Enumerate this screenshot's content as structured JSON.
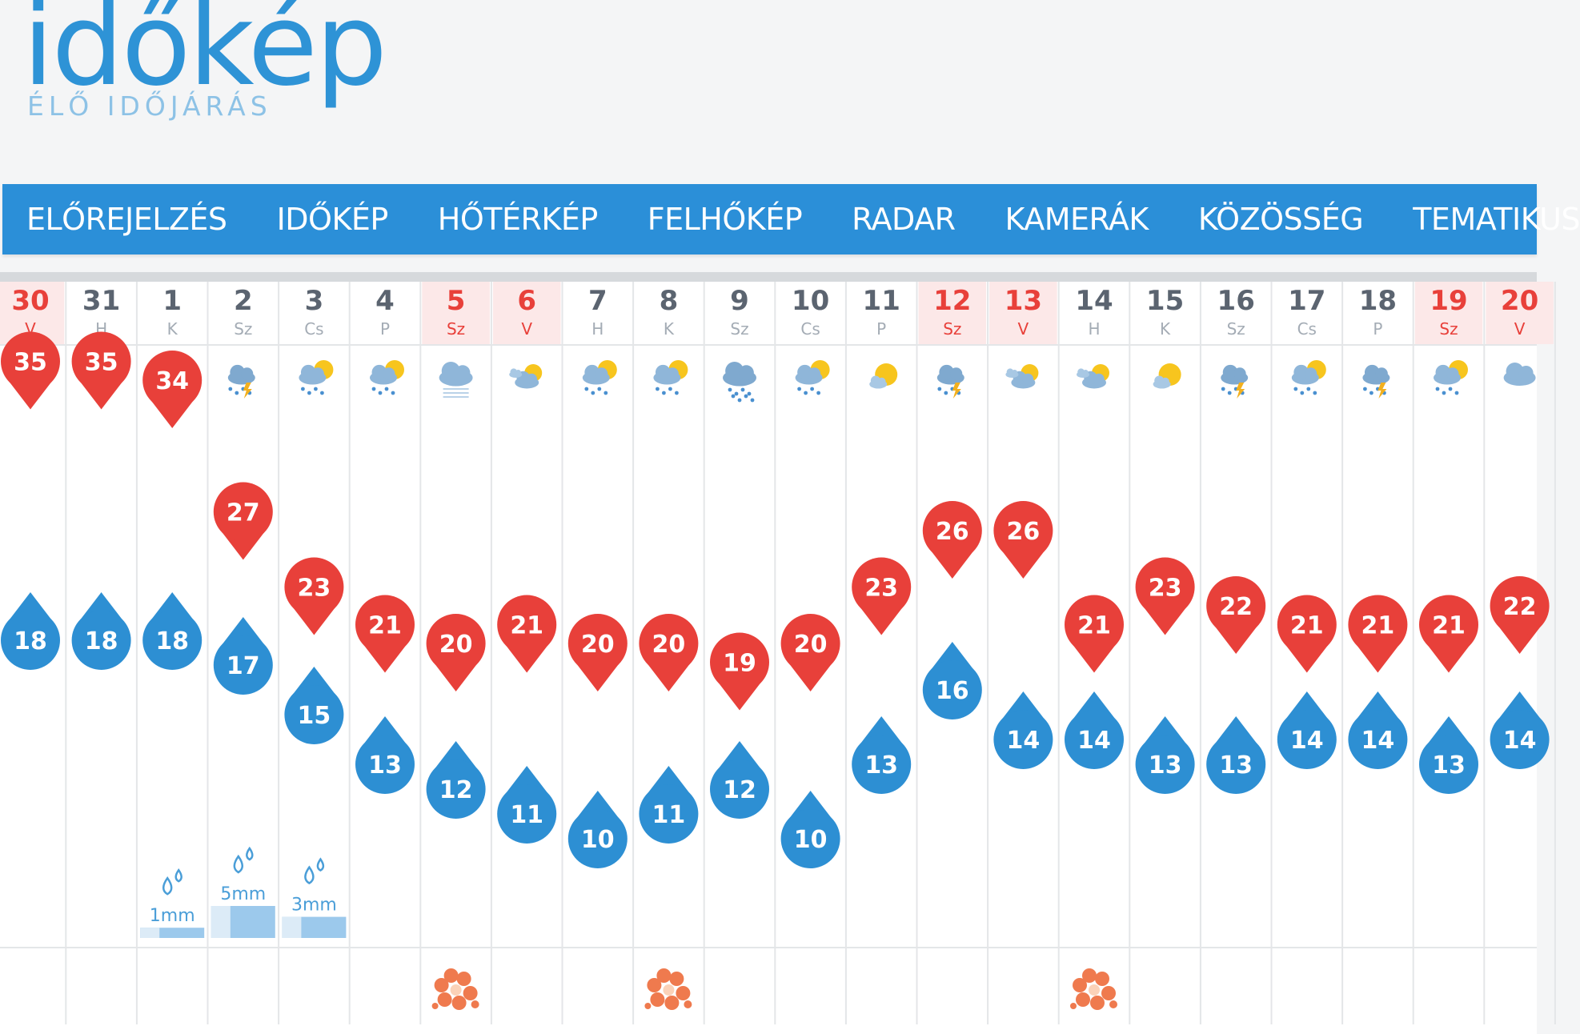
{
  "logo": {
    "wordmark": "időkép",
    "tagline": "ÉLŐ IDŐJÁRÁS"
  },
  "nav": [
    "ELŐREJELZÉS",
    "IDŐKÉP",
    "HŐTÉRKÉP",
    "FELHŐKÉP",
    "RADAR",
    "KAMERÁK",
    "KÖZÖSSÉG",
    "TEMATIKUS"
  ],
  "colors": {
    "brand": "#2b8fd8",
    "max_temp": "#e8403a",
    "min_temp": "#2d8fd3",
    "weekend_bg": "#fce8e8"
  },
  "days": [
    {
      "num": "30",
      "abbr": "V",
      "weekend": true,
      "icon": "sun-cloud-icon",
      "max": "35",
      "min": "18"
    },
    {
      "num": "31",
      "abbr": "H",
      "weekend": false,
      "icon": "sun-icon",
      "max": "35",
      "min": "18"
    },
    {
      "num": "1",
      "abbr": "K",
      "weekend": false,
      "icon": "sun-cloud-icon",
      "max": "34",
      "min": "18",
      "precip": "1mm",
      "precip_level": 0.2
    },
    {
      "num": "2",
      "abbr": "Sz",
      "weekend": false,
      "icon": "storm-icon",
      "max": "27",
      "min": "17",
      "precip": "5mm",
      "precip_level": 1.0
    },
    {
      "num": "3",
      "abbr": "Cs",
      "weekend": false,
      "icon": "rain-sun-icon",
      "max": "23",
      "min": "15",
      "precip": "3mm",
      "precip_level": 0.6
    },
    {
      "num": "4",
      "abbr": "P",
      "weekend": false,
      "icon": "rain-sun-icon",
      "max": "21",
      "min": "13"
    },
    {
      "num": "5",
      "abbr": "Sz",
      "weekend": true,
      "icon": "cloud-fog-icon",
      "max": "20",
      "min": "12",
      "pollen": true
    },
    {
      "num": "6",
      "abbr": "V",
      "weekend": true,
      "icon": "partly-cloudy-icon",
      "max": "21",
      "min": "11"
    },
    {
      "num": "7",
      "abbr": "H",
      "weekend": false,
      "icon": "rain-sun-icon",
      "max": "20",
      "min": "10"
    },
    {
      "num": "8",
      "abbr": "K",
      "weekend": false,
      "icon": "rain-sun-icon",
      "max": "20",
      "min": "11",
      "pollen": true
    },
    {
      "num": "9",
      "abbr": "Sz",
      "weekend": false,
      "icon": "rain-cloud-icon",
      "max": "19",
      "min": "12"
    },
    {
      "num": "10",
      "abbr": "Cs",
      "weekend": false,
      "icon": "rain-sun-icon",
      "max": "20",
      "min": "10"
    },
    {
      "num": "11",
      "abbr": "P",
      "weekend": false,
      "icon": "sun-cloud-icon",
      "max": "23",
      "min": "13"
    },
    {
      "num": "12",
      "abbr": "Sz",
      "weekend": true,
      "icon": "storm-icon",
      "max": "26",
      "min": "16"
    },
    {
      "num": "13",
      "abbr": "V",
      "weekend": true,
      "icon": "partly-cloudy-icon",
      "max": "26",
      "min": "14"
    },
    {
      "num": "14",
      "abbr": "H",
      "weekend": false,
      "icon": "partly-cloudy-icon",
      "max": "21",
      "min": "14",
      "pollen": true
    },
    {
      "num": "15",
      "abbr": "K",
      "weekend": false,
      "icon": "sun-cloud-icon",
      "max": "23",
      "min": "13"
    },
    {
      "num": "16",
      "abbr": "Sz",
      "weekend": false,
      "icon": "storm-icon",
      "max": "22",
      "min": "13"
    },
    {
      "num": "17",
      "abbr": "Cs",
      "weekend": false,
      "icon": "rain-sun-icon",
      "max": "21",
      "min": "14"
    },
    {
      "num": "18",
      "abbr": "P",
      "weekend": false,
      "icon": "storm-icon",
      "max": "21",
      "min": "14"
    },
    {
      "num": "19",
      "abbr": "Sz",
      "weekend": true,
      "icon": "rain-sun-icon",
      "max": "21",
      "min": "13"
    },
    {
      "num": "20",
      "abbr": "V",
      "weekend": true,
      "icon": "cloud-icon",
      "max": "22",
      "min": "14"
    }
  ]
}
